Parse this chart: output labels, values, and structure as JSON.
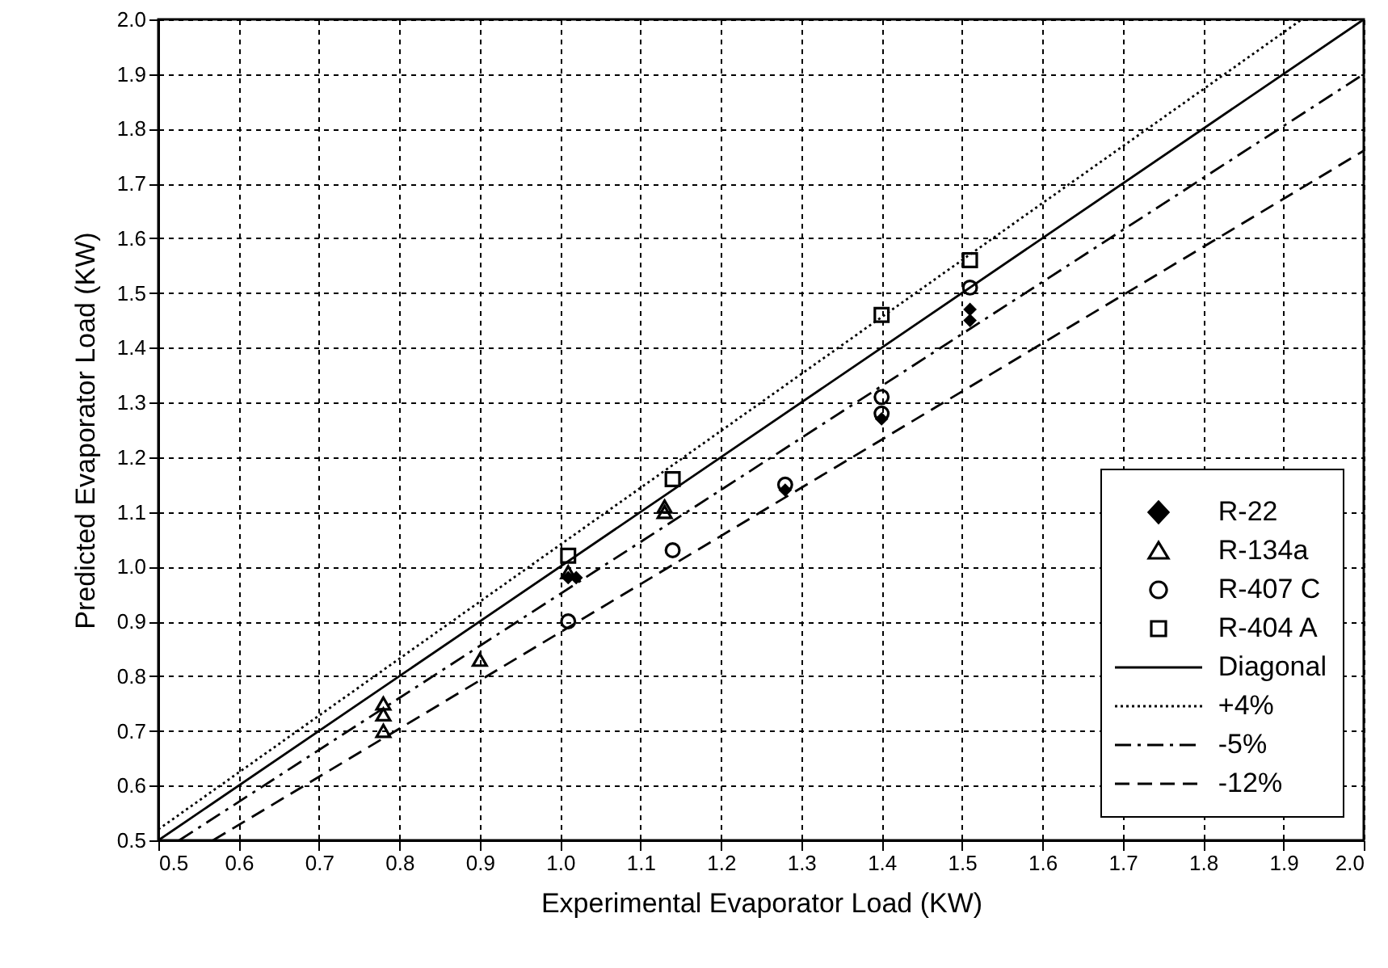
{
  "chart_data": {
    "type": "scatter",
    "xlabel": "Experimental Evaporator Load (KW)",
    "ylabel": "Predicted Evaporator Load (KW)",
    "xlim": [
      0.5,
      2.0
    ],
    "ylim": [
      0.5,
      2.0
    ],
    "xticks": [
      0.5,
      0.6,
      0.7,
      0.8,
      0.9,
      {
        "value": 1,
        "label": "1.0"
      },
      1.1,
      1.2,
      1.3,
      1.4,
      1.5,
      1.6,
      1.7,
      1.8,
      1.9,
      {
        "value": 2,
        "label": "2.0"
      }
    ],
    "yticks": [
      0.5,
      0.6,
      0.7,
      0.8,
      0.9,
      {
        "value": 1,
        "label": "1.0"
      },
      1.1,
      1.2,
      1.3,
      1.4,
      1.5,
      1.6,
      1.7,
      1.8,
      1.9,
      {
        "value": 2,
        "label": "2.0"
      }
    ],
    "grid": true,
    "legend": "bottom right",
    "series": [
      {
        "name": "R-22",
        "type": "scatter",
        "marker": "diamond",
        "color": "#000000",
        "x": [
          1.01,
          1.02,
          1.28,
          1.4,
          1.51,
          1.51
        ],
        "values": [
          0.98,
          0.98,
          1.14,
          1.27,
          1.45,
          1.47
        ]
      },
      {
        "name": "R-134a",
        "type": "scatter",
        "marker": "triangle",
        "color": "#000000",
        "x": [
          0.78,
          0.78,
          0.78,
          0.9,
          1.01,
          1.13,
          1.13
        ],
        "values": [
          0.7,
          0.73,
          0.75,
          0.83,
          0.99,
          1.1,
          1.11
        ]
      },
      {
        "name": "R-407 C",
        "type": "scatter",
        "marker": "circle",
        "color": "#000000",
        "x": [
          1.01,
          1.14,
          1.28,
          1.4,
          1.4,
          1.51
        ],
        "values": [
          0.9,
          1.03,
          1.15,
          1.28,
          1.31,
          1.51
        ]
      },
      {
        "name": "R-404 A",
        "type": "scatter",
        "marker": "square",
        "color": "#000000",
        "x": [
          1.01,
          1.14,
          1.4,
          1.51
        ],
        "values": [
          1.02,
          1.16,
          1.46,
          1.56
        ]
      },
      {
        "name": "Diagonal",
        "type": "line",
        "line_style": "solid",
        "color": "#000000",
        "x": [
          0.5,
          2.0
        ],
        "values": [
          0.5,
          2.0
        ]
      },
      {
        "name": "+4%",
        "type": "line",
        "line_style": "dotted",
        "color": "#000000",
        "x": [
          0.5,
          1.923
        ],
        "values": [
          0.52,
          2.0
        ]
      },
      {
        "name": "-5%",
        "type": "line",
        "line_style": "dashdot",
        "color": "#000000",
        "x": [
          0.526,
          2.0
        ],
        "values": [
          0.5,
          1.9
        ]
      },
      {
        "name": "-12%",
        "type": "line",
        "line_style": "dashed",
        "color": "#000000",
        "x": [
          0.568,
          2.0
        ],
        "values": [
          0.5,
          1.76
        ]
      }
    ]
  }
}
